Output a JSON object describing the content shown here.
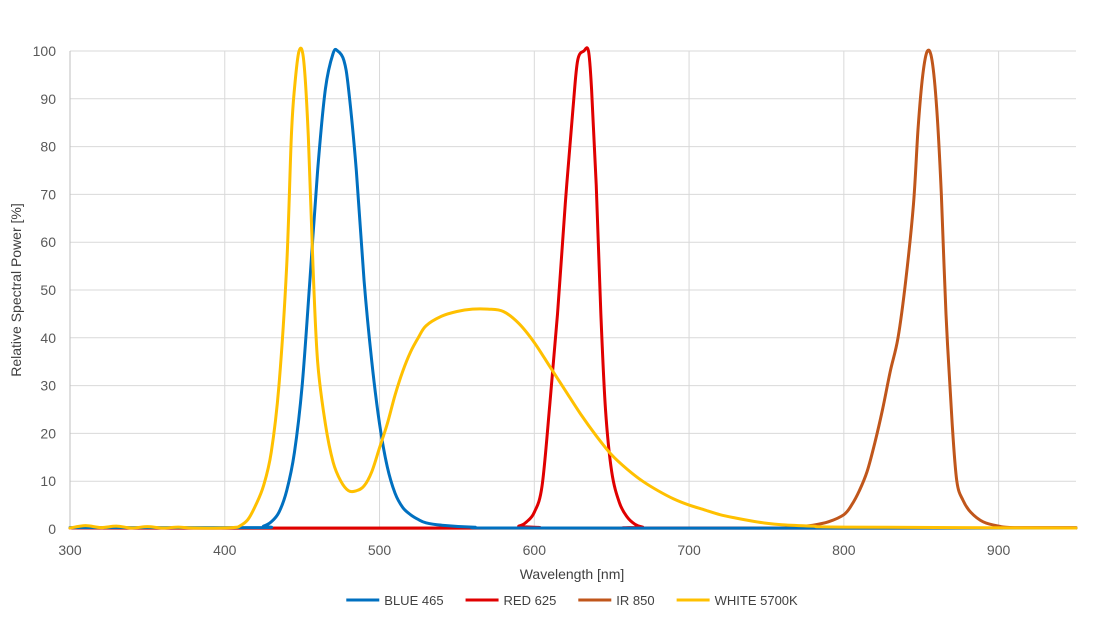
{
  "chart_data": {
    "type": "line",
    "title": "",
    "xlabel": "Wavelength [nm]",
    "ylabel": "Relative Spectral Power [%]",
    "xlim": [
      300,
      950
    ],
    "ylim": [
      0,
      100
    ],
    "xticks": [
      300,
      400,
      500,
      600,
      700,
      800,
      900
    ],
    "yticks": [
      0,
      10,
      20,
      30,
      40,
      50,
      60,
      70,
      80,
      90,
      100
    ],
    "grid": true,
    "legend_position": "bottom",
    "series": [
      {
        "name": "BLUE 465",
        "color": "#0070c0",
        "points": [
          [
            300,
            0.3
          ],
          [
            420,
            0.3
          ],
          [
            425,
            0.6
          ],
          [
            430,
            1.5
          ],
          [
            435,
            3.5
          ],
          [
            440,
            8
          ],
          [
            445,
            16
          ],
          [
            450,
            30
          ],
          [
            455,
            52
          ],
          [
            460,
            75
          ],
          [
            465,
            92
          ],
          [
            470,
            99.5
          ],
          [
            473,
            100
          ],
          [
            477,
            98
          ],
          [
            480,
            92
          ],
          [
            485,
            75
          ],
          [
            490,
            52
          ],
          [
            495,
            35
          ],
          [
            500,
            22
          ],
          [
            505,
            13
          ],
          [
            510,
            7.5
          ],
          [
            515,
            4.5
          ],
          [
            520,
            3
          ],
          [
            525,
            2
          ],
          [
            530,
            1.3
          ],
          [
            540,
            0.8
          ],
          [
            560,
            0.4
          ],
          [
            600,
            0.2
          ],
          [
            950,
            0.2
          ]
        ]
      },
      {
        "name": "RED 625",
        "color": "#e00000",
        "points": [
          [
            300,
            0.2
          ],
          [
            580,
            0.2
          ],
          [
            590,
            0.6
          ],
          [
            595,
            1.5
          ],
          [
            600,
            3.5
          ],
          [
            605,
            9
          ],
          [
            610,
            26
          ],
          [
            615,
            45
          ],
          [
            620,
            68
          ],
          [
            625,
            88
          ],
          [
            628,
            98
          ],
          [
            632,
            100
          ],
          [
            635,
            100
          ],
          [
            637,
            92
          ],
          [
            640,
            72
          ],
          [
            643,
            45
          ],
          [
            646,
            25
          ],
          [
            650,
            12
          ],
          [
            655,
            5.5
          ],
          [
            660,
            2.5
          ],
          [
            665,
            1
          ],
          [
            670,
            0.4
          ],
          [
            680,
            0.2
          ],
          [
            950,
            0.2
          ]
        ]
      },
      {
        "name": "IR 850",
        "color": "#c0561b",
        "points": [
          [
            300,
            0.2
          ],
          [
            750,
            0.2
          ],
          [
            770,
            0.5
          ],
          [
            780,
            0.8
          ],
          [
            790,
            1.5
          ],
          [
            800,
            3
          ],
          [
            805,
            5
          ],
          [
            810,
            8
          ],
          [
            815,
            12
          ],
          [
            820,
            18
          ],
          [
            825,
            25
          ],
          [
            830,
            33
          ],
          [
            835,
            40
          ],
          [
            840,
            52
          ],
          [
            845,
            68
          ],
          [
            848,
            84
          ],
          [
            851,
            95
          ],
          [
            854,
            100
          ],
          [
            857,
            98
          ],
          [
            860,
            88
          ],
          [
            863,
            70
          ],
          [
            866,
            45
          ],
          [
            870,
            22
          ],
          [
            873,
            10
          ],
          [
            877,
            6
          ],
          [
            882,
            3.5
          ],
          [
            890,
            1.5
          ],
          [
            900,
            0.6
          ],
          [
            910,
            0.3
          ],
          [
            950,
            0.3
          ]
        ]
      },
      {
        "name": "WHITE 5700K",
        "color": "#ffc000",
        "points": [
          [
            300,
            0.2
          ],
          [
            310,
            0.7
          ],
          [
            320,
            0.3
          ],
          [
            330,
            0.6
          ],
          [
            340,
            0.2
          ],
          [
            350,
            0.5
          ],
          [
            360,
            0.2
          ],
          [
            370,
            0.4
          ],
          [
            380,
            0.2
          ],
          [
            405,
            0.3
          ],
          [
            410,
            0.7
          ],
          [
            415,
            2
          ],
          [
            420,
            5
          ],
          [
            425,
            9
          ],
          [
            430,
            16
          ],
          [
            435,
            30
          ],
          [
            440,
            55
          ],
          [
            443,
            82
          ],
          [
            445,
            92
          ],
          [
            448,
            100
          ],
          [
            451,
            98
          ],
          [
            454,
            82
          ],
          [
            457,
            55
          ],
          [
            460,
            35
          ],
          [
            465,
            22
          ],
          [
            470,
            14
          ],
          [
            475,
            10
          ],
          [
            480,
            8
          ],
          [
            485,
            8
          ],
          [
            490,
            9
          ],
          [
            495,
            12
          ],
          [
            500,
            17
          ],
          [
            505,
            22
          ],
          [
            510,
            28
          ],
          [
            515,
            33
          ],
          [
            520,
            37
          ],
          [
            525,
            40
          ],
          [
            530,
            42.5
          ],
          [
            540,
            44.5
          ],
          [
            550,
            45.5
          ],
          [
            560,
            46
          ],
          [
            570,
            46
          ],
          [
            580,
            45.5
          ],
          [
            590,
            43
          ],
          [
            600,
            39
          ],
          [
            610,
            34
          ],
          [
            620,
            29
          ],
          [
            630,
            24
          ],
          [
            640,
            19.5
          ],
          [
            650,
            15.5
          ],
          [
            660,
            12.5
          ],
          [
            670,
            10
          ],
          [
            680,
            8
          ],
          [
            690,
            6.3
          ],
          [
            700,
            5
          ],
          [
            710,
            4
          ],
          [
            720,
            3
          ],
          [
            730,
            2.3
          ],
          [
            740,
            1.7
          ],
          [
            750,
            1.2
          ],
          [
            760,
            0.9
          ],
          [
            780,
            0.6
          ],
          [
            800,
            0.4
          ],
          [
            950,
            0.2
          ]
        ]
      }
    ]
  }
}
